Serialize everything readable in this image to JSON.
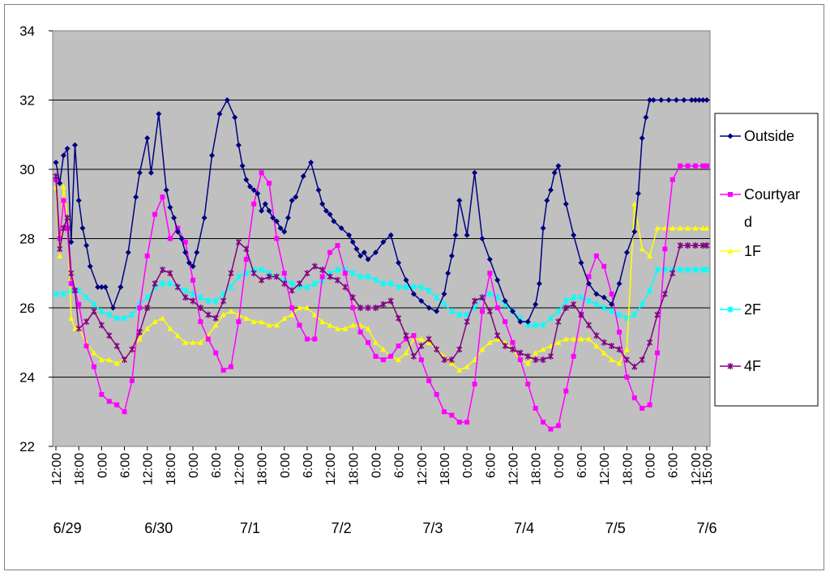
{
  "chart_data": {
    "type": "line",
    "ylim": [
      22,
      34
    ],
    "yticks": [
      22,
      24,
      26,
      28,
      30,
      32,
      34
    ],
    "grid": true,
    "legend_position": "right",
    "x_tick_labels": [
      "12:00",
      "18:00",
      "0:00",
      "6:00",
      "12:00",
      "18:00",
      "0:00",
      "6:00",
      "12:00",
      "18:00",
      "0:00",
      "6:00",
      "12:00",
      "18:00",
      "0:00",
      "6:00",
      "12:00",
      "18:00",
      "0:00",
      "6:00",
      "12:00",
      "18:00",
      "0:00",
      "6:00",
      "12:00",
      "18:00",
      "0:00",
      "6:00",
      "12:00",
      "15:00"
    ],
    "date_labels": [
      "6/29",
      "6/30",
      "7/1",
      "7/2",
      "7/3",
      "7/4",
      "7/5",
      "7/6"
    ],
    "x_range_hours": [
      0,
      171
    ],
    "series": [
      {
        "name": "Outside",
        "color": "#000080",
        "marker": "diamond",
        "hour_offsets": [
          0,
          1,
          2,
          3,
          4,
          5,
          6,
          7,
          8,
          9,
          11,
          12,
          13,
          15,
          17,
          19,
          21,
          22,
          24,
          25,
          27,
          29,
          30,
          31,
          32,
          33,
          34,
          35,
          36,
          37,
          39,
          41,
          43,
          45,
          47,
          48,
          49,
          50,
          51,
          52,
          53,
          54,
          55,
          56,
          57,
          58,
          59,
          60,
          61,
          62,
          63,
          65,
          67,
          69,
          70,
          71,
          72,
          73,
          75,
          77,
          78,
          79,
          80,
          81,
          82,
          84,
          86,
          88,
          90,
          92,
          94,
          96,
          98,
          100,
          102,
          103,
          104,
          105,
          106,
          108,
          110,
          112,
          114,
          116,
          118,
          120,
          122,
          124,
          126,
          127,
          128,
          129,
          130,
          131,
          132,
          134,
          136,
          138,
          140,
          142,
          144,
          146,
          148,
          150,
          152,
          153,
          154,
          155,
          156,
          157,
          159,
          161,
          163,
          165,
          167,
          168,
          169,
          170,
          171
        ],
        "values": [
          30.2,
          29.6,
          30.4,
          30.6,
          27.9,
          30.7,
          29.1,
          28.3,
          27.8,
          27.2,
          26.6,
          26.6,
          26.6,
          26.0,
          26.6,
          27.6,
          29.2,
          29.9,
          30.9,
          29.9,
          31.6,
          29.4,
          28.9,
          28.6,
          28.2,
          28.0,
          27.6,
          27.3,
          27.2,
          27.6,
          28.6,
          30.4,
          31.6,
          32.0,
          31.5,
          30.7,
          30.1,
          29.7,
          29.5,
          29.4,
          29.3,
          28.8,
          29.0,
          28.8,
          28.6,
          28.5,
          28.3,
          28.2,
          28.6,
          29.1,
          29.2,
          29.8,
          30.2,
          29.4,
          29.0,
          28.8,
          28.7,
          28.5,
          28.3,
          28.1,
          27.9,
          27.7,
          27.5,
          27.6,
          27.4,
          27.6,
          27.9,
          28.1,
          27.3,
          26.8,
          26.4,
          26.2,
          26.0,
          25.9,
          26.4,
          27.0,
          27.5,
          28.1,
          29.1,
          28.1,
          29.9,
          28.0,
          27.4,
          26.8,
          26.2,
          25.9,
          25.6,
          25.6,
          26.1,
          26.7,
          28.3,
          29.1,
          29.4,
          29.9,
          30.1,
          29.0,
          28.1,
          27.3,
          26.7,
          26.4,
          26.3,
          26.1,
          26.7,
          27.6,
          28.2,
          29.3,
          30.9,
          31.5,
          32.0,
          32.0,
          32.0,
          32.0,
          32.0,
          32.0,
          32.0,
          32.0,
          32.0,
          32.0,
          32.0
        ]
      },
      {
        "name": "Courtyard",
        "color": "#ff00ff",
        "marker": "square",
        "hours": [
          0,
          1,
          2,
          3,
          4,
          5,
          6,
          8,
          10,
          12,
          14,
          16,
          18,
          20,
          22,
          24,
          26,
          28,
          30,
          32,
          34,
          36,
          38,
          40,
          42,
          44,
          46,
          48,
          50,
          52,
          54,
          56,
          58,
          60,
          62,
          64,
          66,
          68,
          70,
          72,
          74,
          76,
          78,
          80,
          82,
          84,
          86,
          88,
          90,
          92,
          94,
          96,
          98,
          100,
          102,
          104,
          106,
          108,
          110,
          112,
          114,
          116,
          118,
          120,
          122,
          124,
          126,
          128,
          130,
          132,
          134,
          136,
          138,
          140,
          142,
          144,
          146,
          148,
          150,
          152,
          154,
          156,
          158,
          160,
          162,
          164,
          166,
          168,
          170,
          171
        ],
        "values": [
          29.7,
          28.0,
          29.1,
          28.3,
          26.7,
          26.5,
          26.1,
          24.9,
          24.3,
          23.5,
          23.3,
          23.2,
          23.0,
          23.9,
          26.0,
          27.5,
          28.7,
          29.2,
          28.0,
          28.3,
          27.9,
          26.8,
          25.6,
          25.1,
          24.7,
          24.2,
          24.3,
          25.6,
          27.4,
          29.0,
          29.9,
          29.6,
          28.0,
          27.0,
          26.0,
          25.5,
          25.1,
          25.1,
          26.9,
          27.6,
          27.8,
          27.0,
          26.0,
          25.3,
          25.0,
          24.6,
          24.5,
          24.6,
          24.9,
          25.1,
          25.2,
          24.5,
          23.9,
          23.5,
          23.0,
          22.9,
          22.7,
          22.7,
          23.8,
          25.9,
          27.0,
          26.0,
          25.6,
          25.0,
          24.5,
          23.8,
          23.1,
          22.7,
          22.5,
          22.6,
          23.6,
          24.6,
          25.8,
          26.9,
          27.5,
          27.2,
          26.4,
          25.3,
          24.0,
          23.4,
          23.1,
          23.2,
          24.7,
          27.7,
          29.7,
          30.1,
          30.1,
          30.1,
          30.1,
          30.1
        ]
      },
      {
        "name": "1F",
        "color": "#ffff00",
        "marker": "triangle",
        "hours": [
          0,
          1,
          2,
          3,
          4,
          5,
          6,
          8,
          10,
          12,
          14,
          16,
          18,
          20,
          22,
          24,
          26,
          28,
          30,
          32,
          34,
          36,
          38,
          40,
          42,
          44,
          46,
          48,
          50,
          52,
          54,
          56,
          58,
          60,
          62,
          64,
          66,
          68,
          70,
          72,
          74,
          76,
          78,
          80,
          82,
          84,
          86,
          88,
          90,
          92,
          94,
          96,
          98,
          100,
          102,
          104,
          106,
          108,
          110,
          112,
          114,
          116,
          118,
          120,
          122,
          124,
          126,
          128,
          130,
          132,
          134,
          136,
          138,
          140,
          142,
          144,
          146,
          148,
          150,
          152,
          154,
          156,
          158,
          160,
          162,
          164,
          166,
          168,
          170,
          171
        ],
        "values": [
          29.5,
          27.5,
          29.5,
          28.6,
          25.7,
          25.4,
          25.4,
          25.0,
          24.7,
          24.5,
          24.5,
          24.4,
          24.5,
          24.8,
          25.1,
          25.4,
          25.6,
          25.7,
          25.4,
          25.2,
          25.0,
          25.0,
          25.0,
          25.2,
          25.5,
          25.8,
          25.9,
          25.8,
          25.7,
          25.6,
          25.6,
          25.5,
          25.5,
          25.7,
          25.8,
          26.0,
          26.0,
          25.8,
          25.6,
          25.5,
          25.4,
          25.4,
          25.5,
          25.5,
          25.4,
          25.0,
          24.8,
          24.6,
          24.5,
          24.7,
          25.1,
          25.1,
          25.0,
          24.8,
          24.6,
          24.4,
          24.2,
          24.3,
          24.5,
          24.8,
          25.0,
          25.1,
          25.0,
          24.8,
          24.5,
          24.4,
          24.7,
          24.8,
          24.9,
          25.0,
          25.1,
          25.1,
          25.1,
          25.1,
          24.9,
          24.7,
          24.5,
          24.4,
          24.8,
          29.0,
          27.7,
          27.5,
          28.3,
          28.3,
          28.3,
          28.3,
          28.3,
          28.3,
          28.3,
          28.3
        ]
      },
      {
        "name": "2F",
        "color": "#00ffff",
        "marker": "star",
        "hours": [
          0,
          2,
          4,
          6,
          8,
          10,
          12,
          14,
          16,
          18,
          20,
          22,
          24,
          26,
          28,
          30,
          32,
          34,
          36,
          38,
          40,
          42,
          44,
          46,
          48,
          50,
          52,
          54,
          56,
          58,
          60,
          62,
          64,
          66,
          68,
          70,
          72,
          74,
          76,
          78,
          80,
          82,
          84,
          86,
          88,
          90,
          92,
          94,
          96,
          98,
          100,
          102,
          104,
          106,
          108,
          110,
          112,
          114,
          116,
          118,
          120,
          122,
          124,
          126,
          128,
          130,
          132,
          134,
          136,
          138,
          140,
          142,
          144,
          146,
          148,
          150,
          152,
          154,
          156,
          158,
          160,
          162,
          164,
          166,
          168,
          170,
          171
        ],
        "values": [
          26.4,
          26.4,
          26.5,
          26.5,
          26.3,
          26.1,
          25.9,
          25.8,
          25.7,
          25.7,
          25.8,
          26.1,
          26.3,
          26.6,
          26.7,
          26.7,
          26.6,
          26.5,
          26.4,
          26.3,
          26.2,
          26.2,
          26.4,
          26.6,
          26.9,
          27.0,
          27.1,
          27.1,
          27.0,
          26.9,
          26.8,
          26.7,
          26.6,
          26.6,
          26.7,
          26.8,
          27.0,
          27.1,
          27.1,
          27.0,
          26.9,
          26.9,
          26.8,
          26.7,
          26.7,
          26.6,
          26.6,
          26.6,
          26.6,
          26.5,
          26.3,
          26.1,
          25.9,
          25.8,
          25.8,
          26.0,
          26.3,
          26.4,
          26.3,
          26.1,
          25.9,
          25.7,
          25.5,
          25.5,
          25.5,
          25.7,
          25.9,
          26.2,
          26.3,
          26.3,
          26.2,
          26.1,
          26.0,
          25.9,
          25.8,
          25.7,
          25.8,
          26.1,
          26.5,
          27.1,
          27.1,
          27.1,
          27.1,
          27.1,
          27.1,
          27.1,
          27.1
        ]
      },
      {
        "name": "4F",
        "color": "#800080",
        "marker": "x",
        "hours": [
          0,
          1,
          2,
          3,
          4,
          5,
          6,
          8,
          10,
          12,
          14,
          16,
          18,
          20,
          22,
          24,
          26,
          28,
          30,
          32,
          34,
          36,
          38,
          40,
          42,
          44,
          46,
          48,
          50,
          52,
          54,
          56,
          58,
          60,
          62,
          64,
          66,
          68,
          70,
          72,
          74,
          76,
          78,
          80,
          82,
          84,
          86,
          88,
          90,
          92,
          94,
          96,
          98,
          100,
          102,
          104,
          106,
          108,
          110,
          112,
          114,
          116,
          118,
          120,
          122,
          124,
          126,
          128,
          130,
          132,
          134,
          136,
          138,
          140,
          142,
          144,
          146,
          148,
          150,
          152,
          154,
          156,
          158,
          160,
          162,
          164,
          166,
          168,
          170,
          171
        ],
        "values": [
          29.8,
          27.7,
          28.3,
          28.6,
          27.0,
          26.5,
          25.4,
          25.6,
          25.9,
          25.5,
          25.2,
          24.9,
          24.5,
          24.8,
          25.3,
          26.0,
          26.7,
          27.1,
          27.0,
          26.6,
          26.3,
          26.2,
          26.0,
          25.8,
          25.7,
          26.2,
          27.0,
          27.9,
          27.7,
          27.0,
          26.8,
          26.9,
          26.9,
          26.7,
          26.5,
          26.7,
          27.0,
          27.2,
          27.1,
          26.9,
          26.8,
          26.6,
          26.3,
          26.0,
          26.0,
          26.0,
          26.1,
          26.2,
          25.7,
          25.2,
          24.6,
          24.9,
          25.1,
          24.8,
          24.5,
          24.5,
          24.8,
          25.6,
          26.2,
          26.3,
          25.9,
          25.2,
          24.9,
          24.8,
          24.7,
          24.6,
          24.5,
          24.5,
          24.6,
          25.6,
          26.0,
          26.1,
          25.8,
          25.5,
          25.2,
          25.0,
          24.9,
          24.8,
          24.5,
          24.3,
          24.5,
          25.0,
          25.8,
          26.4,
          27.0,
          27.8,
          27.8,
          27.8,
          27.8,
          27.8
        ]
      }
    ]
  }
}
